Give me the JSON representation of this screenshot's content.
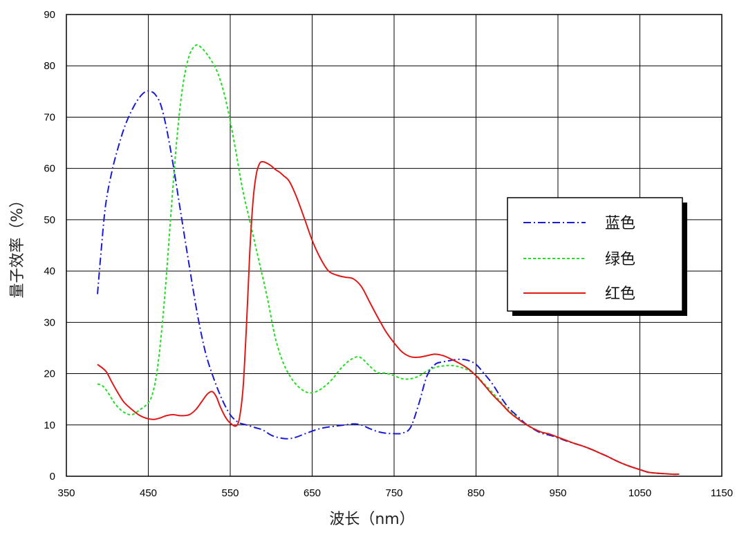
{
  "chart_data": {
    "type": "line",
    "title": "",
    "xlabel": "波长（nm）",
    "ylabel": "量子效率（%）",
    "xlim": [
      350,
      1150
    ],
    "ylim": [
      0,
      90
    ],
    "xticks": [
      "350",
      "450",
      "550",
      "650",
      "750",
      "850",
      "950",
      "1050",
      "1150"
    ],
    "yticks": [
      "0",
      "10",
      "20",
      "30",
      "40",
      "50",
      "60",
      "70",
      "80",
      "90"
    ],
    "grid": true,
    "legend_position": "right",
    "series": [
      {
        "name": "蓝色",
        "color": "#1a1ad6",
        "style": "dash-dot",
        "x": [
          388,
          393,
          398,
          405,
          413,
          422,
          432,
          440,
          447,
          453,
          458,
          465,
          472,
          480,
          490,
          500,
          510,
          520,
          530,
          540,
          550,
          560,
          570,
          580,
          590,
          600,
          610,
          620,
          630,
          640,
          650,
          660,
          670,
          680,
          690,
          700,
          710,
          720,
          730,
          740,
          750,
          760,
          770,
          780,
          790,
          800,
          810,
          820,
          830,
          840,
          850,
          860,
          870,
          880,
          890,
          900,
          910,
          920,
          930,
          940,
          950,
          960,
          970,
          980,
          990,
          1000,
          1010,
          1020,
          1030,
          1040,
          1050,
          1060,
          1070,
          1080,
          1090,
          1098
        ],
        "y": [
          35.5,
          45,
          53,
          59,
          64,
          68.5,
          72,
          74,
          75,
          75,
          74.5,
          72.5,
          68,
          61,
          51,
          41,
          31.5,
          24,
          19,
          15,
          12,
          10.5,
          10,
          9.5,
          9,
          8,
          7.5,
          7.3,
          7.6,
          8.2,
          8.8,
          9.3,
          9.6,
          9.8,
          10,
          10.2,
          10,
          9.3,
          8.7,
          8.4,
          8.3,
          8.4,
          9.5,
          14,
          19.5,
          21.8,
          22.3,
          22.6,
          22.8,
          22.6,
          21.8,
          20,
          18,
          15.5,
          13.3,
          11.8,
          10.3,
          9.2,
          8.4,
          8,
          7.5,
          6.9,
          6.4,
          5.9,
          5.3,
          4.6,
          3.9,
          3.1,
          2.4,
          1.8,
          1.3,
          0.8,
          0.6,
          0.5,
          0.4,
          0.4
        ]
      },
      {
        "name": "绿色",
        "color": "#22dd22",
        "style": "dotted",
        "x": [
          388,
          395,
          402,
          410,
          420,
          430,
          440,
          448,
          455,
          462,
          470,
          478,
          485,
          492,
          500,
          508,
          515,
          525,
          535,
          545,
          555,
          565,
          575,
          585,
          595,
          605,
          615,
          625,
          635,
          645,
          655,
          665,
          675,
          685,
          695,
          705,
          712,
          720,
          730,
          740,
          750,
          760,
          770,
          780,
          790,
          800,
          810,
          820,
          830,
          840,
          850,
          860,
          870,
          880,
          890,
          900,
          910,
          920,
          930,
          940,
          950,
          960,
          970,
          980,
          990,
          1000,
          1010,
          1020,
          1030,
          1040,
          1050,
          1060,
          1070,
          1080,
          1090,
          1098
        ],
        "y": [
          18,
          17.5,
          16,
          14,
          12.5,
          12,
          13,
          14,
          16,
          22,
          35,
          52,
          66,
          76,
          82,
          84,
          83.5,
          81.5,
          78.5,
          73,
          65,
          56,
          49,
          42,
          35,
          27,
          22,
          19,
          17.2,
          16.3,
          16.5,
          17.5,
          19,
          21,
          22.5,
          23.3,
          22.8,
          21.5,
          20.2,
          20.1,
          19.6,
          19,
          19,
          19.5,
          20.5,
          21.2,
          21.5,
          21.6,
          21.3,
          20.7,
          19.7,
          18,
          16.3,
          14.5,
          12.8,
          11.5,
          10.3,
          9.3,
          8.6,
          8.2,
          7.6,
          7,
          6.4,
          5.9,
          5.3,
          4.6,
          3.9,
          3.1,
          2.4,
          1.8,
          1.3,
          0.8,
          0.6,
          0.5,
          0.4,
          0.4
        ]
      },
      {
        "name": "红色",
        "color": "#e01818",
        "style": "solid",
        "x": [
          388,
          398,
          405,
          412,
          420,
          430,
          440,
          450,
          458,
          465,
          472,
          480,
          490,
          500,
          508,
          515,
          522,
          528,
          533,
          538,
          545,
          552,
          558,
          562,
          566,
          570,
          574,
          578,
          582,
          586,
          590,
          595,
          600,
          605,
          610,
          615,
          622,
          630,
          640,
          650,
          660,
          670,
          680,
          690,
          700,
          710,
          720,
          730,
          740,
          750,
          760,
          770,
          780,
          790,
          800,
          810,
          820,
          830,
          840,
          850,
          860,
          870,
          880,
          890,
          900,
          910,
          920,
          930,
          940,
          950,
          960,
          970,
          980,
          990,
          1000,
          1010,
          1020,
          1030,
          1040,
          1050,
          1060,
          1070,
          1080,
          1090,
          1098
        ],
        "y": [
          21.8,
          20.5,
          18.5,
          16.5,
          14.5,
          13,
          11.8,
          11.2,
          11.1,
          11.4,
          11.8,
          12,
          11.8,
          12,
          13,
          14.5,
          16,
          16.5,
          15.5,
          13.5,
          11.3,
          10.1,
          9.9,
          12,
          18,
          30,
          44,
          54,
          59,
          61,
          61.3,
          61,
          60.5,
          59.8,
          59.3,
          58.6,
          57.5,
          54.8,
          50.5,
          46,
          42.5,
          40,
          39.2,
          38.8,
          38.5,
          37,
          34,
          31,
          28.2,
          26,
          24.2,
          23.3,
          23.2,
          23.5,
          23.8,
          23.5,
          22.8,
          22,
          21,
          19.6,
          17.8,
          15.9,
          14.3,
          12.6,
          11.3,
          10.2,
          9.3,
          8.6,
          8.2,
          7.6,
          7,
          6.4,
          5.9,
          5.3,
          4.6,
          3.9,
          3.1,
          2.4,
          1.8,
          1.3,
          0.8,
          0.6,
          0.5,
          0.4,
          0.4
        ]
      }
    ]
  }
}
